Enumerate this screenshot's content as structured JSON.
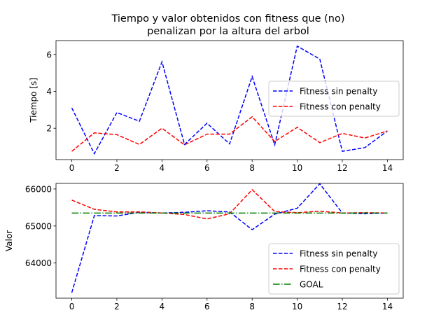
{
  "title_lines": [
    "Tiempo y valor obtenidos con fitness que (no)",
    "penalizan por la altura del arbol"
  ],
  "chart_data": [
    {
      "type": "line",
      "xlabel": "",
      "ylabel": "Tiempo [s]",
      "xlim": [
        -0.7,
        14.7
      ],
      "ylim": [
        0.3,
        6.75
      ],
      "xticks": [
        0,
        2,
        4,
        6,
        8,
        10,
        12,
        14
      ],
      "yticks": [
        2,
        4,
        6
      ],
      "x": [
        0,
        1,
        2,
        3,
        4,
        5,
        6,
        7,
        8,
        9,
        10,
        11,
        12,
        13,
        14
      ],
      "legend_position": "center-right",
      "series": [
        {
          "name": "Fitness sin penalty",
          "color": "#0000ff",
          "dash": "dashed",
          "values": [
            3.1,
            0.62,
            2.85,
            2.38,
            5.6,
            1.12,
            2.27,
            1.15,
            4.8,
            1.1,
            6.45,
            5.75,
            0.75,
            0.95,
            1.85
          ]
        },
        {
          "name": "Fitness con penalty",
          "color": "#ff0000",
          "dash": "dashed",
          "values": [
            0.75,
            1.75,
            1.65,
            1.12,
            2.0,
            1.1,
            1.68,
            1.68,
            2.62,
            1.28,
            2.05,
            1.22,
            1.72,
            1.47,
            1.85
          ]
        }
      ]
    },
    {
      "type": "line",
      "xlabel": "",
      "ylabel": "Valor",
      "xlim": [
        -0.7,
        14.7
      ],
      "ylim": [
        63050,
        66150
      ],
      "xticks": [
        0,
        2,
        4,
        6,
        8,
        10,
        12,
        14
      ],
      "yticks": [
        64000,
        65000,
        66000
      ],
      "x": [
        0,
        1,
        2,
        3,
        4,
        5,
        6,
        7,
        8,
        9,
        10,
        11,
        12,
        13,
        14
      ],
      "legend_position": "lower-right",
      "series": [
        {
          "name": "Fitness sin penalty",
          "color": "#0000ff",
          "dash": "dashed",
          "values": [
            63200,
            65280,
            65270,
            65370,
            65350,
            65370,
            65410,
            65380,
            64900,
            65320,
            65480,
            66140,
            65350,
            65330,
            65350
          ]
        },
        {
          "name": "Fitness con penalty",
          "color": "#ff0000",
          "dash": "dashed",
          "values": [
            65700,
            65450,
            65380,
            65380,
            65350,
            65310,
            65190,
            65330,
            65980,
            65390,
            65360,
            65400,
            65350,
            65360,
            65350
          ]
        },
        {
          "name": "GOAL",
          "color": "#008000",
          "dash": "dashdot",
          "values": [
            65350,
            65350,
            65350,
            65350,
            65350,
            65350,
            65350,
            65350,
            65350,
            65350,
            65350,
            65350,
            65350,
            65350,
            65350
          ]
        }
      ]
    }
  ]
}
